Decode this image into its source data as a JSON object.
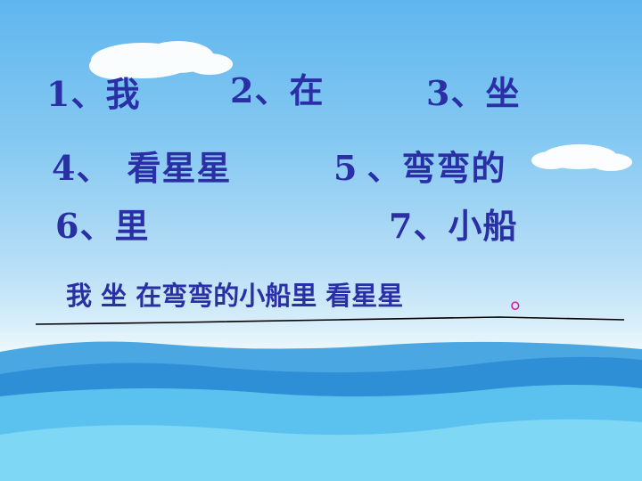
{
  "slide": {
    "items": [
      {
        "number": "1",
        "sep": "、",
        "text": "我"
      },
      {
        "number": "2",
        "sep": "、",
        "text": "在"
      },
      {
        "number": "3",
        "sep": "、",
        "text": "坐"
      },
      {
        "number": "4",
        "sep": "、",
        "text": "看星星"
      },
      {
        "number": "5",
        "sep": "、",
        "text": "弯弯的"
      },
      {
        "number": "6",
        "sep": "、",
        "text": "里"
      },
      {
        "number": "7",
        "sep": "、",
        "text": "小船"
      }
    ],
    "answer_sentence": "我 坐 在弯弯的小船里 看星星",
    "answer_period": "。"
  }
}
